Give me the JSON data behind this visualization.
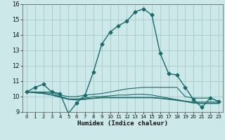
{
  "title": "",
  "xlabel": "Humidex (Indice chaleur)",
  "background_color": "#cce8e8",
  "grid_color": "#aacfcf",
  "line_color": "#1a6b6b",
  "xlim": [
    -0.5,
    23.5
  ],
  "ylim": [
    9,
    16
  ],
  "xticks": [
    0,
    1,
    2,
    3,
    4,
    5,
    6,
    7,
    8,
    9,
    10,
    11,
    12,
    13,
    14,
    15,
    16,
    17,
    18,
    19,
    20,
    21,
    22,
    23
  ],
  "yticks": [
    9,
    10,
    11,
    12,
    13,
    14,
    15,
    16
  ],
  "series": [
    {
      "x": [
        0,
        1,
        2,
        3,
        4,
        5,
        6,
        7,
        8,
        9,
        10,
        11,
        12,
        13,
        14,
        15,
        16,
        17,
        18,
        19,
        20,
        21,
        22,
        23
      ],
      "y": [
        10.3,
        10.6,
        10.8,
        10.3,
        10.2,
        8.9,
        9.6,
        10.1,
        11.6,
        13.4,
        14.2,
        14.6,
        14.9,
        15.5,
        15.7,
        15.3,
        12.8,
        11.5,
        11.4,
        10.6,
        9.8,
        9.3,
        9.9,
        9.7
      ],
      "marker": "D",
      "markersize": 2.5,
      "linewidth": 1.0
    },
    {
      "x": [
        0,
        1,
        2,
        3,
        4,
        5,
        6,
        7,
        8,
        9,
        10,
        11,
        12,
        13,
        14,
        15,
        16,
        17,
        18,
        19,
        20,
        21,
        22,
        23
      ],
      "y": [
        10.3,
        10.3,
        10.3,
        10.3,
        10.1,
        10.0,
        10.0,
        10.1,
        10.15,
        10.2,
        10.3,
        10.4,
        10.5,
        10.55,
        10.6,
        10.6,
        10.6,
        10.6,
        10.6,
        10.0,
        9.9,
        9.9,
        9.9,
        9.7
      ],
      "marker": null,
      "linewidth": 0.8
    },
    {
      "x": [
        0,
        1,
        2,
        3,
        4,
        5,
        6,
        7,
        8,
        9,
        10,
        11,
        12,
        13,
        14,
        15,
        16,
        17,
        18,
        19,
        20,
        21,
        22,
        23
      ],
      "y": [
        10.3,
        10.3,
        10.25,
        10.2,
        10.0,
        9.85,
        9.85,
        9.9,
        10.0,
        10.0,
        10.05,
        10.1,
        10.1,
        10.15,
        10.15,
        10.1,
        10.0,
        9.9,
        9.8,
        9.7,
        9.65,
        9.65,
        9.65,
        9.65
      ],
      "marker": null,
      "linewidth": 0.8
    },
    {
      "x": [
        0,
        1,
        2,
        3,
        4,
        5,
        6,
        7,
        8,
        9,
        10,
        11,
        12,
        13,
        14,
        15,
        16,
        17,
        18,
        19,
        20,
        21,
        22,
        23
      ],
      "y": [
        10.3,
        10.25,
        10.2,
        10.1,
        10.0,
        9.85,
        9.8,
        9.85,
        9.9,
        9.95,
        9.95,
        9.95,
        9.95,
        9.95,
        9.95,
        9.95,
        9.9,
        9.85,
        9.8,
        9.7,
        9.6,
        9.58,
        9.58,
        9.58
      ],
      "marker": null,
      "linewidth": 0.8
    },
    {
      "x": [
        0,
        1,
        2,
        3,
        4,
        5,
        6,
        7,
        8,
        9,
        10,
        11,
        12,
        13,
        14,
        15,
        16,
        17,
        18,
        19,
        20,
        21,
        22,
        23
      ],
      "y": [
        10.3,
        10.25,
        10.2,
        10.1,
        9.95,
        9.82,
        9.78,
        9.82,
        9.88,
        9.92,
        9.92,
        9.92,
        9.92,
        9.92,
        9.92,
        9.92,
        9.88,
        9.82,
        9.75,
        9.68,
        9.58,
        9.55,
        9.55,
        9.55
      ],
      "marker": null,
      "linewidth": 0.8
    }
  ]
}
